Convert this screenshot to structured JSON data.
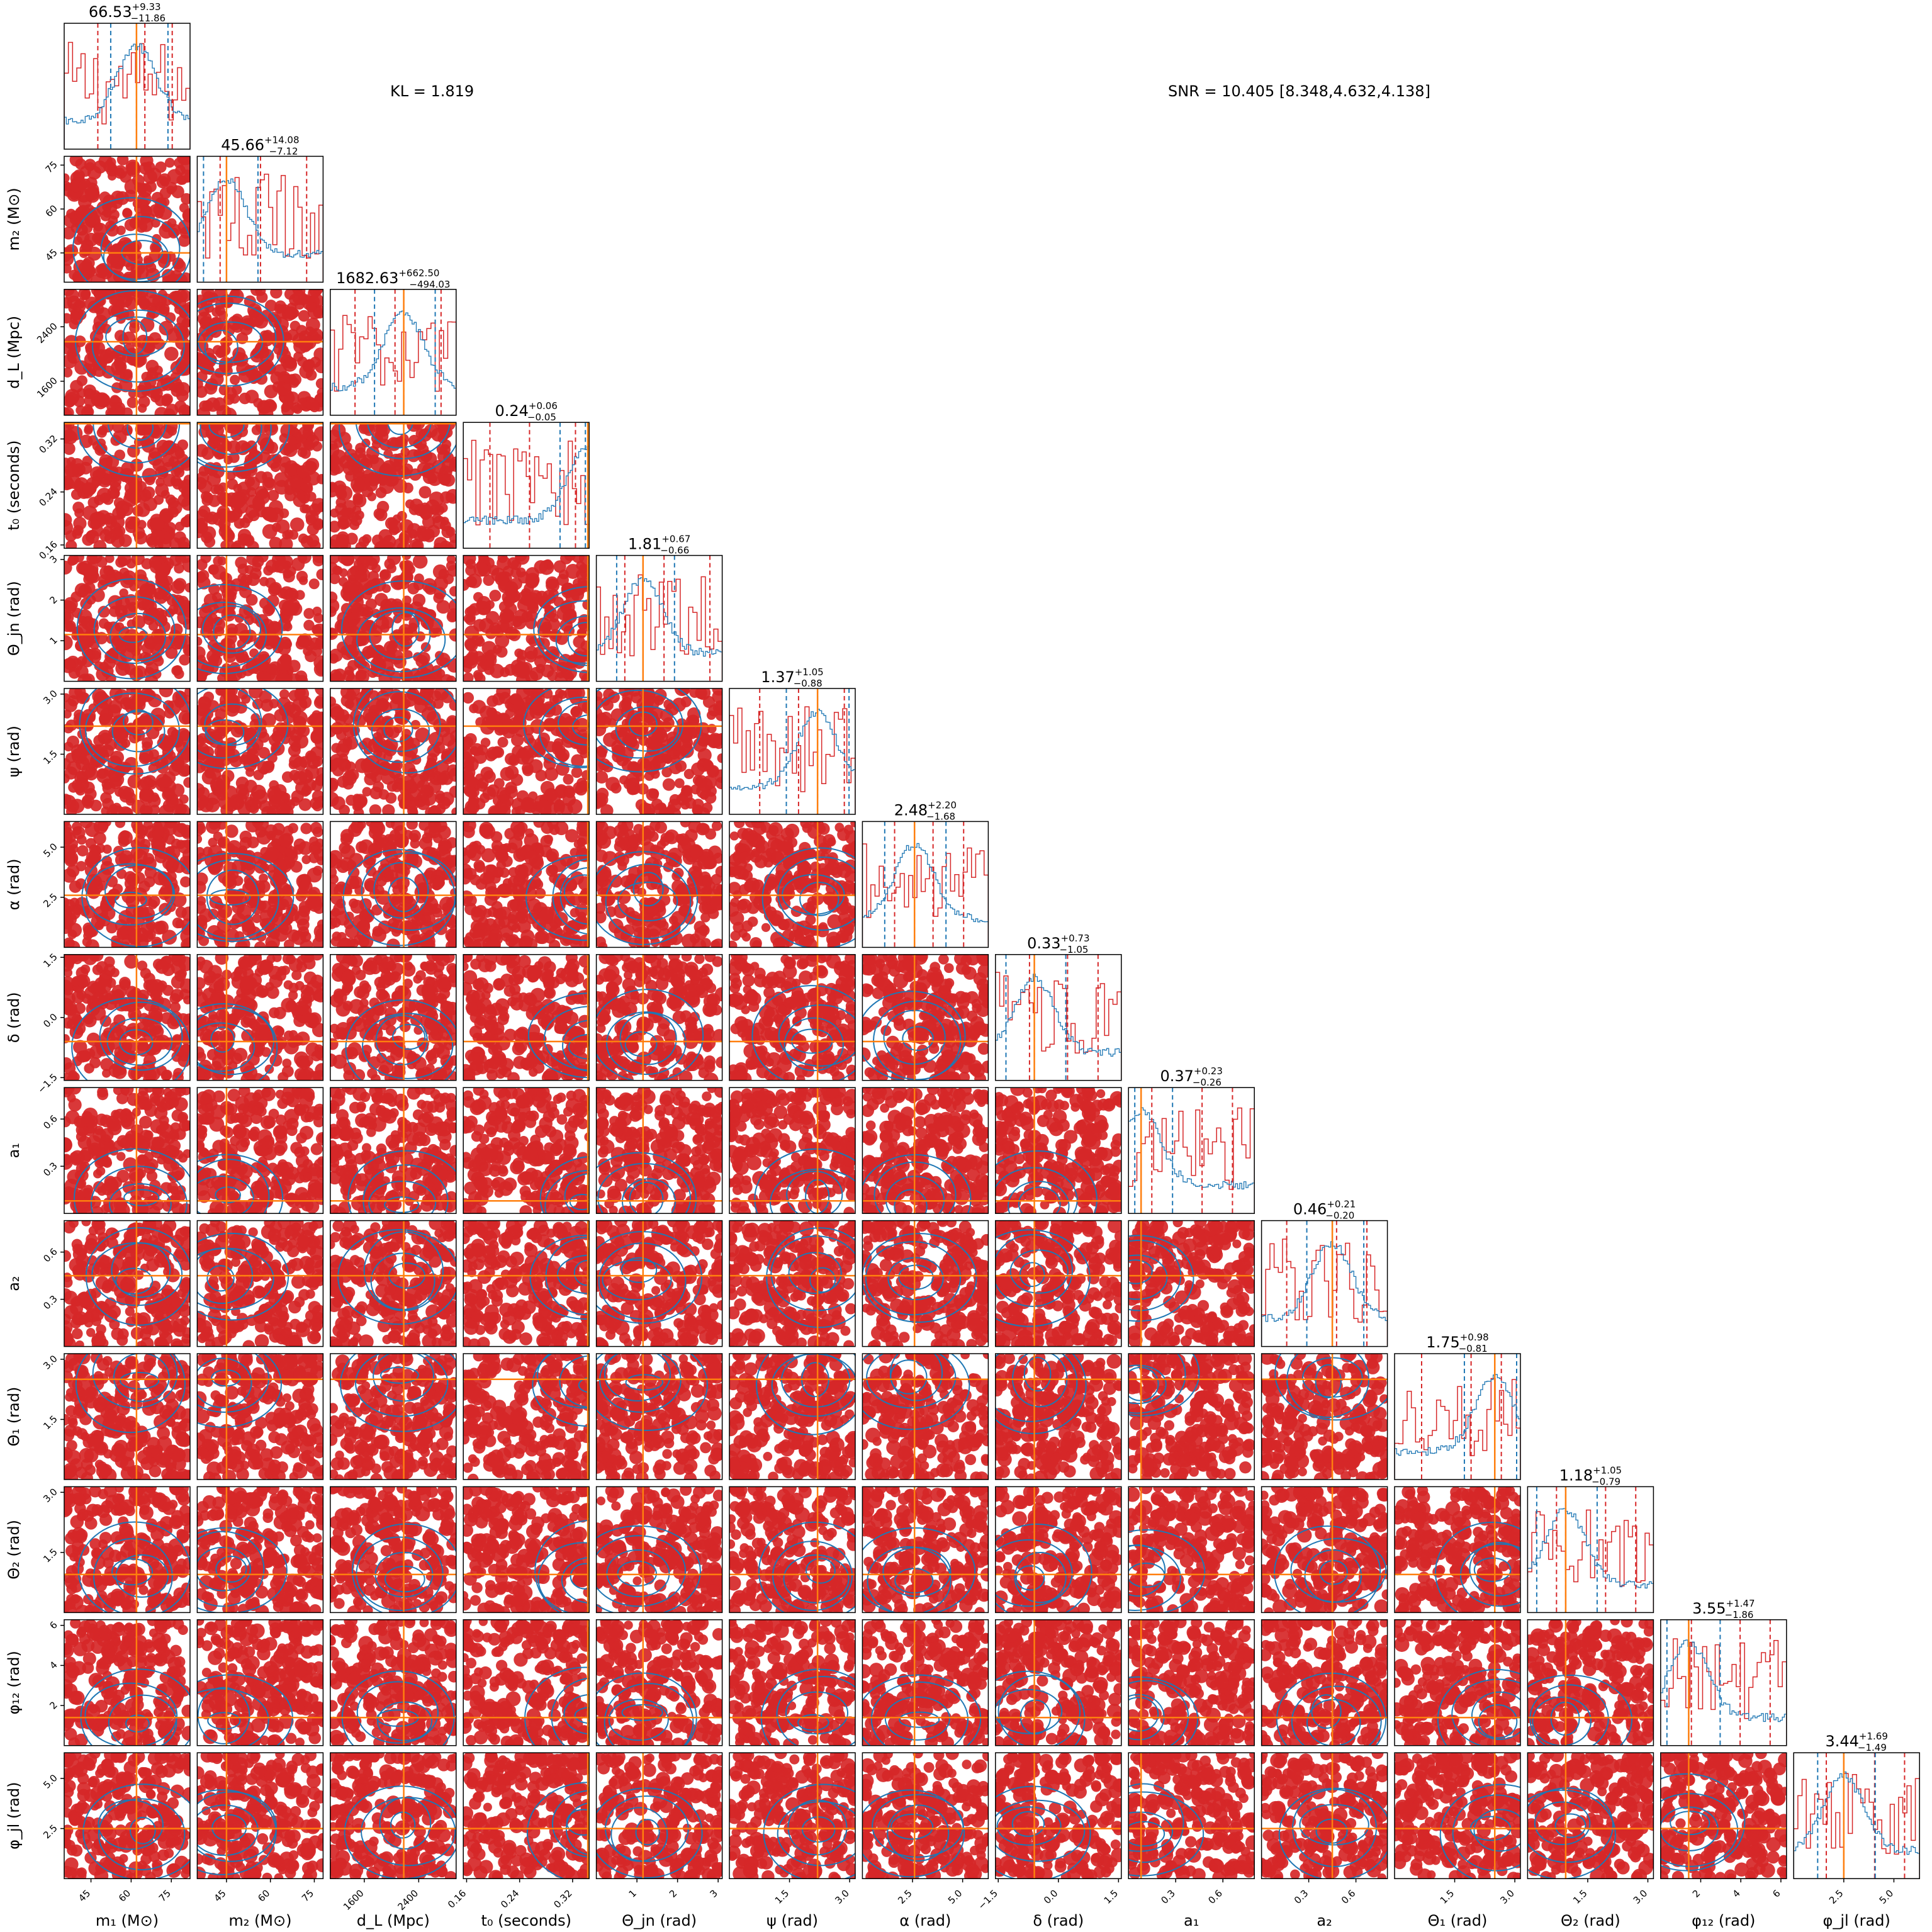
{
  "annotations": {
    "kl": "KL = 1.819",
    "snr": "SNR = 10.405 [8.348,4.632,4.138]"
  },
  "colors": {
    "red": "#d62728",
    "blue": "#1f77b4",
    "orange": "#ff7f0e",
    "frame": "#000000"
  },
  "chart_data": {
    "type": "corner",
    "parameters": [
      {
        "key": "m1",
        "label": "m₁ (M⊙)",
        "range": [
          35,
          82
        ],
        "ticks": [
          "45",
          "60",
          "75"
        ],
        "tick_values": [
          45,
          60,
          75
        ],
        "truth": 62,
        "summary": {
          "median": "66.53",
          "plus": "+9.33",
          "minus": "−11.86"
        }
      },
      {
        "key": "m2",
        "label": "m₂ (M⊙)",
        "range": [
          35,
          78
        ],
        "ticks": [
          "45",
          "60",
          "75"
        ],
        "tick_values": [
          45,
          60,
          75
        ],
        "truth": 45,
        "summary": {
          "median": "45.66",
          "plus": "+14.08",
          "minus": "−7.12"
        }
      },
      {
        "key": "dL",
        "label": "d_L (Mpc)",
        "range": [
          1100,
          2950
        ],
        "ticks": [
          "1600",
          "2400"
        ],
        "tick_values": [
          1600,
          2400
        ],
        "truth": 2180,
        "summary": {
          "median": "1682.63",
          "plus": "+662.50",
          "minus": "−494.03"
        }
      },
      {
        "key": "t0",
        "label": "t₀ (seconds)",
        "range": [
          0.155,
          0.345
        ],
        "ticks": [
          "0.16",
          "0.24",
          "0.32"
        ],
        "tick_values": [
          0.16,
          0.24,
          0.32
        ],
        "truth": 0.343,
        "summary": {
          "median": "0.24",
          "plus": "+0.06",
          "minus": "−0.05"
        }
      },
      {
        "key": "thetajn",
        "label": "Θ_jn (rad)",
        "range": [
          0.0,
          3.1
        ],
        "ticks": [
          "1",
          "2",
          "3"
        ],
        "tick_values": [
          1,
          2,
          3
        ],
        "truth": 1.15,
        "summary": {
          "median": "1.81",
          "plus": "+0.67",
          "minus": "−0.66"
        }
      },
      {
        "key": "psi",
        "label": "ψ (rad)",
        "range": [
          0.0,
          3.14
        ],
        "ticks": [
          "1.5",
          "3.0"
        ],
        "tick_values": [
          1.5,
          3.0
        ],
        "truth": 2.2,
        "summary": {
          "median": "1.37",
          "plus": "+1.05",
          "minus": "−0.88"
        }
      },
      {
        "key": "alpha",
        "label": "α (rad)",
        "range": [
          0.0,
          6.28
        ],
        "ticks": [
          "2.5",
          "5.0"
        ],
        "tick_values": [
          2.5,
          5.0
        ],
        "truth": 2.6,
        "summary": {
          "median": "2.48",
          "plus": "+2.20",
          "minus": "−1.68"
        }
      },
      {
        "key": "delta",
        "label": "δ (rad)",
        "range": [
          -1.57,
          1.57
        ],
        "ticks": [
          "−1.5",
          "0.0",
          "1.5"
        ],
        "tick_values": [
          -1.5,
          0.0,
          1.5
        ],
        "truth": -0.6,
        "summary": {
          "median": "0.33",
          "plus": "+0.73",
          "minus": "−1.05"
        }
      },
      {
        "key": "a1",
        "label": "a₁",
        "range": [
          0.0,
          0.8
        ],
        "ticks": [
          "0.3",
          "0.6"
        ],
        "tick_values": [
          0.3,
          0.6
        ],
        "truth": 0.08,
        "summary": {
          "median": "0.37",
          "plus": "+0.23",
          "minus": "−0.26"
        }
      },
      {
        "key": "a2",
        "label": "a₂",
        "range": [
          0.0,
          0.8
        ],
        "ticks": [
          "0.3",
          "0.6"
        ],
        "tick_values": [
          0.3,
          0.6
        ],
        "truth": 0.45,
        "summary": {
          "median": "0.46",
          "plus": "+0.21",
          "minus": "−0.20"
        }
      },
      {
        "key": "theta1",
        "label": "Θ₁ (rad)",
        "range": [
          0.0,
          3.14
        ],
        "ticks": [
          "1.5",
          "3.0"
        ],
        "tick_values": [
          1.5,
          3.0
        ],
        "truth": 2.5,
        "summary": {
          "median": "1.75",
          "plus": "+0.98",
          "minus": "−0.81"
        }
      },
      {
        "key": "theta2",
        "label": "Θ₂ (rad)",
        "range": [
          0.0,
          3.14
        ],
        "ticks": [
          "1.5",
          "3.0"
        ],
        "tick_values": [
          1.5,
          3.0
        ],
        "truth": 0.95,
        "summary": {
          "median": "1.18",
          "plus": "+1.05",
          "minus": "−0.79"
        }
      },
      {
        "key": "phi12",
        "label": "φ₁₂ (rad)",
        "range": [
          0.0,
          6.28
        ],
        "ticks": [
          "2",
          "4",
          "6"
        ],
        "tick_values": [
          2,
          4,
          6
        ],
        "truth": 1.4,
        "summary": {
          "median": "3.55",
          "plus": "+1.47",
          "minus": "−1.86"
        }
      },
      {
        "key": "phijl",
        "label": "φ_jl (rad)",
        "range": [
          0.0,
          6.28
        ],
        "ticks": [
          "2.5",
          "5.0"
        ],
        "tick_values": [
          2.5,
          5.0
        ],
        "truth": 2.5,
        "summary": {
          "median": "3.44",
          "plus": "+1.69",
          "minus": "−1.49"
        }
      }
    ]
  }
}
